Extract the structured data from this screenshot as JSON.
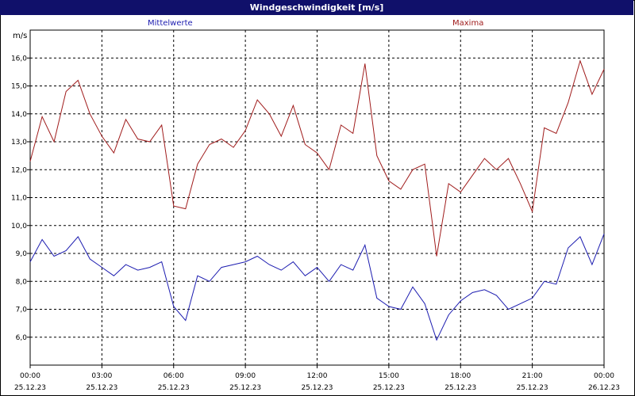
{
  "title": "Windgeschwindigkeit [m/s]",
  "chart_data": {
    "type": "line",
    "title": "Windgeschwindigkeit [m/s]",
    "ylabel": "m/s",
    "ylim": [
      5.0,
      17.0
    ],
    "yticks": [
      "6,0",
      "7,0",
      "8,0",
      "9,0",
      "10,0",
      "11,0",
      "12,0",
      "13,0",
      "14,0",
      "15,0",
      "16,0"
    ],
    "xticks": [
      {
        "time": "00:00",
        "date": "25.12.23"
      },
      {
        "time": "03:00",
        "date": "25.12.23"
      },
      {
        "time": "06:00",
        "date": "25.12.23"
      },
      {
        "time": "09:00",
        "date": "25.12.23"
      },
      {
        "time": "12:00",
        "date": "25.12.23"
      },
      {
        "time": "15:00",
        "date": "25.12.23"
      },
      {
        "time": "18:00",
        "date": "25.12.23"
      },
      {
        "time": "21:00",
        "date": "25.12.23"
      },
      {
        "time": "00:00",
        "date": "26.12.23"
      }
    ],
    "grid": true,
    "x_hours": [
      0,
      0.5,
      1,
      1.5,
      2,
      2.5,
      3,
      3.5,
      4,
      4.5,
      5,
      5.5,
      6,
      6.5,
      7,
      7.5,
      8,
      8.5,
      9,
      9.5,
      10,
      10.5,
      11,
      11.5,
      12,
      12.5,
      13,
      13.5,
      14,
      14.5,
      15,
      15.5,
      16,
      16.5,
      17,
      17.5,
      18,
      18.5,
      19,
      19.5,
      20,
      20.5,
      21,
      21.5,
      22,
      22.5,
      23,
      23.5,
      24
    ],
    "series": [
      {
        "name": "Mittelwerte",
        "color": "#1c1cb0",
        "values": [
          8.7,
          9.5,
          8.9,
          9.1,
          9.6,
          8.8,
          8.5,
          8.2,
          8.6,
          8.4,
          8.5,
          8.7,
          7.1,
          6.6,
          8.2,
          8.0,
          8.5,
          8.6,
          8.7,
          8.9,
          8.6,
          8.4,
          8.7,
          8.2,
          8.5,
          8.0,
          8.6,
          8.4,
          9.3,
          7.4,
          7.1,
          7.0,
          7.8,
          7.2,
          5.9,
          6.8,
          7.3,
          7.6,
          7.7,
          7.5,
          7.0,
          7.2,
          7.4,
          8.0,
          7.9,
          9.2,
          9.6,
          8.6,
          9.7
        ]
      },
      {
        "name": "Maxima",
        "color": "#a01c1c",
        "values": [
          12.3,
          13.9,
          13.0,
          14.8,
          15.2,
          14.0,
          13.2,
          12.6,
          13.8,
          13.1,
          13.0,
          13.6,
          10.7,
          10.6,
          12.2,
          12.9,
          13.1,
          12.8,
          13.4,
          14.5,
          14.0,
          13.2,
          14.3,
          12.9,
          12.6,
          12.0,
          13.6,
          13.3,
          15.8,
          12.5,
          11.6,
          11.3,
          12.0,
          12.2,
          8.9,
          11.5,
          11.2,
          11.8,
          12.4,
          12.0,
          12.4,
          11.5,
          10.5,
          13.5,
          13.3,
          14.4,
          15.9,
          14.7,
          15.6
        ]
      }
    ]
  }
}
